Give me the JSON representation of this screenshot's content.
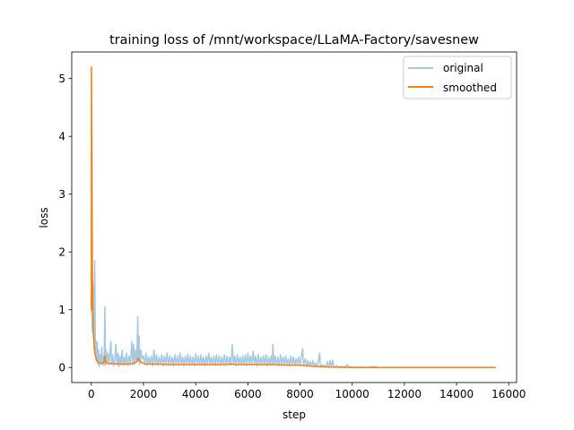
{
  "chart_data": {
    "type": "line",
    "title": "training loss of /mnt/workspace/LLaMA-Factory/savesnew",
    "xlabel": "step",
    "ylabel": "loss",
    "xlim": [
      -750,
      16300
    ],
    "ylim": [
      -0.26,
      5.46
    ],
    "xticks": [
      0,
      2000,
      4000,
      6000,
      8000,
      10000,
      12000,
      14000,
      16000
    ],
    "yticks": [
      0,
      1,
      2,
      3,
      4,
      5
    ],
    "grid": false,
    "legend_position": "upper right",
    "series": [
      {
        "name": "original",
        "color": "#1f77b4",
        "opacity": 0.4,
        "points": [
          [
            0,
            1.0
          ],
          [
            10,
            0.95
          ],
          [
            20,
            1.1
          ],
          [
            30,
            0.7
          ],
          [
            50,
            0.6
          ],
          [
            60,
            1.5
          ],
          [
            80,
            0.5
          ],
          [
            100,
            1.4
          ],
          [
            110,
            0.3
          ],
          [
            130,
            1.85
          ],
          [
            150,
            0.6
          ],
          [
            170,
            0.2
          ],
          [
            190,
            0.45
          ],
          [
            210,
            0.1
          ],
          [
            230,
            0.44
          ],
          [
            250,
            0.05
          ],
          [
            280,
            0.3
          ],
          [
            310,
            0.02
          ],
          [
            340,
            0.22
          ],
          [
            370,
            0.08
          ],
          [
            400,
            0.35
          ],
          [
            430,
            0.05
          ],
          [
            460,
            0.2
          ],
          [
            490,
            0.03
          ],
          [
            520,
            1.05
          ],
          [
            545,
            0.05
          ],
          [
            570,
            0.3
          ],
          [
            600,
            0.08
          ],
          [
            640,
            0.25
          ],
          [
            680,
            0.05
          ],
          [
            720,
            0.28
          ],
          [
            750,
            0.45
          ],
          [
            780,
            0.05
          ],
          [
            820,
            0.22
          ],
          [
            860,
            0.03
          ],
          [
            900,
            0.15
          ],
          [
            940,
            0.4
          ],
          [
            980,
            0.05
          ],
          [
            1020,
            0.25
          ],
          [
            1060,
            0.02
          ],
          [
            1100,
            0.2
          ],
          [
            1140,
            0.05
          ],
          [
            1180,
            0.3
          ],
          [
            1220,
            0.04
          ],
          [
            1260,
            0.18
          ],
          [
            1300,
            0.05
          ],
          [
            1350,
            0.25
          ],
          [
            1400,
            0.03
          ],
          [
            1450,
            0.2
          ],
          [
            1500,
            0.05
          ],
          [
            1550,
            0.45
          ],
          [
            1590,
            0.05
          ],
          [
            1620,
            0.4
          ],
          [
            1660,
            0.05
          ],
          [
            1700,
            0.3
          ],
          [
            1740,
            0.1
          ],
          [
            1780,
            0.88
          ],
          [
            1800,
            0.1
          ],
          [
            1830,
            0.55
          ],
          [
            1860,
            0.05
          ],
          [
            1900,
            0.3
          ],
          [
            1950,
            0.15
          ],
          [
            2000,
            0.2
          ],
          [
            2050,
            0.05
          ],
          [
            2100,
            0.25
          ],
          [
            2150,
            0.04
          ],
          [
            2200,
            0.18
          ],
          [
            2250,
            0.05
          ],
          [
            2300,
            0.2
          ],
          [
            2350,
            0.03
          ],
          [
            2400,
            0.3
          ],
          [
            2450,
            0.05
          ],
          [
            2500,
            0.22
          ],
          [
            2550,
            0.04
          ],
          [
            2600,
            0.18
          ],
          [
            2650,
            0.06
          ],
          [
            2700,
            0.22
          ],
          [
            2750,
            0.03
          ],
          [
            2800,
            0.2
          ],
          [
            2850,
            0.05
          ],
          [
            2900,
            0.25
          ],
          [
            2950,
            0.04
          ],
          [
            3000,
            0.2
          ],
          [
            3050,
            0.05
          ],
          [
            3100,
            0.18
          ],
          [
            3150,
            0.03
          ],
          [
            3200,
            0.22
          ],
          [
            3250,
            0.05
          ],
          [
            3300,
            0.2
          ],
          [
            3350,
            0.04
          ],
          [
            3400,
            0.25
          ],
          [
            3450,
            0.05
          ],
          [
            3500,
            0.18
          ],
          [
            3550,
            0.03
          ],
          [
            3600,
            0.2
          ],
          [
            3650,
            0.05
          ],
          [
            3700,
            0.23
          ],
          [
            3750,
            0.04
          ],
          [
            3800,
            0.2
          ],
          [
            3850,
            0.05
          ],
          [
            3900,
            0.18
          ],
          [
            3950,
            0.03
          ],
          [
            4000,
            0.24
          ],
          [
            4050,
            0.05
          ],
          [
            4100,
            0.2
          ],
          [
            4150,
            0.04
          ],
          [
            4200,
            0.22
          ],
          [
            4250,
            0.05
          ],
          [
            4300,
            0.18
          ],
          [
            4350,
            0.03
          ],
          [
            4400,
            0.2
          ],
          [
            4450,
            0.05
          ],
          [
            4500,
            0.25
          ],
          [
            4550,
            0.04
          ],
          [
            4600,
            0.18
          ],
          [
            4650,
            0.05
          ],
          [
            4700,
            0.2
          ],
          [
            4750,
            0.03
          ],
          [
            4800,
            0.22
          ],
          [
            4850,
            0.05
          ],
          [
            4900,
            0.2
          ],
          [
            4950,
            0.04
          ],
          [
            5000,
            0.18
          ],
          [
            5050,
            0.05
          ],
          [
            5100,
            0.22
          ],
          [
            5150,
            0.03
          ],
          [
            5200,
            0.2
          ],
          [
            5250,
            0.05
          ],
          [
            5300,
            0.18
          ],
          [
            5350,
            0.04
          ],
          [
            5400,
            0.4
          ],
          [
            5450,
            0.05
          ],
          [
            5500,
            0.2
          ],
          [
            5550,
            0.03
          ],
          [
            5600,
            0.22
          ],
          [
            5650,
            0.05
          ],
          [
            5700,
            0.18
          ],
          [
            5750,
            0.04
          ],
          [
            5800,
            0.2
          ],
          [
            5850,
            0.05
          ],
          [
            5900,
            0.22
          ],
          [
            5950,
            0.03
          ],
          [
            6000,
            0.25
          ],
          [
            6050,
            0.05
          ],
          [
            6100,
            0.2
          ],
          [
            6150,
            0.04
          ],
          [
            6200,
            0.28
          ],
          [
            6250,
            0.05
          ],
          [
            6300,
            0.2
          ],
          [
            6350,
            0.03
          ],
          [
            6400,
            0.22
          ],
          [
            6450,
            0.05
          ],
          [
            6500,
            0.18
          ],
          [
            6550,
            0.04
          ],
          [
            6600,
            0.2
          ],
          [
            6650,
            0.05
          ],
          [
            6700,
            0.22
          ],
          [
            6750,
            0.03
          ],
          [
            6800,
            0.18
          ],
          [
            6850,
            0.05
          ],
          [
            6900,
            0.2
          ],
          [
            6930,
            0.05
          ],
          [
            6960,
            0.4
          ],
          [
            7000,
            0.04
          ],
          [
            7050,
            0.2
          ],
          [
            7100,
            0.05
          ],
          [
            7150,
            0.18
          ],
          [
            7200,
            0.03
          ],
          [
            7250,
            0.22
          ],
          [
            7300,
            0.05
          ],
          [
            7350,
            0.18
          ],
          [
            7400,
            0.04
          ],
          [
            7450,
            0.2
          ],
          [
            7500,
            0.05
          ],
          [
            7550,
            0.15
          ],
          [
            7600,
            0.03
          ],
          [
            7650,
            0.2
          ],
          [
            7700,
            0.05
          ],
          [
            7750,
            0.18
          ],
          [
            7800,
            0.04
          ],
          [
            7850,
            0.15
          ],
          [
            7900,
            0.05
          ],
          [
            7950,
            0.18
          ],
          [
            8000,
            0.03
          ],
          [
            8050,
            0.2
          ],
          [
            8100,
            0.33
          ],
          [
            8130,
            0.03
          ],
          [
            8200,
            0.15
          ],
          [
            8250,
            0.02
          ],
          [
            8300,
            0.12
          ],
          [
            8350,
            0.02
          ],
          [
            8400,
            0.1
          ],
          [
            8450,
            0.02
          ],
          [
            8500,
            0.12
          ],
          [
            8550,
            0.01
          ],
          [
            8600,
            0.08
          ],
          [
            8650,
            0.02
          ],
          [
            8700,
            0.1
          ],
          [
            8750,
            0.25
          ],
          [
            8780,
            0.01
          ],
          [
            8850,
            0.05
          ],
          [
            8900,
            0.01
          ],
          [
            8950,
            0.04
          ],
          [
            9000,
            0.01
          ],
          [
            9050,
            0.1
          ],
          [
            9100,
            0.0
          ],
          [
            9150,
            0.12
          ],
          [
            9200,
            0.01
          ],
          [
            9250,
            0.13
          ],
          [
            9300,
            0.0
          ],
          [
            9400,
            0.03
          ],
          [
            9500,
            0.0
          ],
          [
            9600,
            0.02
          ],
          [
            9700,
            0.0
          ],
          [
            9800,
            0.05
          ],
          [
            9900,
            0.0
          ],
          [
            10000,
            0.01
          ],
          [
            10200,
            0.0
          ],
          [
            10400,
            0.01
          ],
          [
            10600,
            0.0
          ],
          [
            10800,
            0.02
          ],
          [
            11000,
            0.0
          ],
          [
            11500,
            0.0
          ],
          [
            12000,
            0.0
          ],
          [
            12500,
            0.0
          ],
          [
            13000,
            0.0
          ],
          [
            13500,
            0.0
          ],
          [
            14000,
            0.0
          ],
          [
            14500,
            0.0
          ],
          [
            15000,
            0.0
          ],
          [
            15500,
            0.0
          ]
        ]
      },
      {
        "name": "smoothed",
        "color": "#ff7f0e",
        "opacity": 1,
        "points": [
          [
            0,
            1.0
          ],
          [
            5,
            5.2
          ],
          [
            20,
            4.0
          ],
          [
            30,
            2.7
          ],
          [
            40,
            1.8
          ],
          [
            50,
            1.2
          ],
          [
            60,
            0.9
          ],
          [
            80,
            0.6
          ],
          [
            100,
            0.45
          ],
          [
            120,
            0.3
          ],
          [
            140,
            0.25
          ],
          [
            160,
            0.2
          ],
          [
            180,
            0.15
          ],
          [
            200,
            0.12
          ],
          [
            250,
            0.1
          ],
          [
            300,
            0.08
          ],
          [
            400,
            0.07
          ],
          [
            500,
            0.1
          ],
          [
            520,
            0.2
          ],
          [
            550,
            0.1
          ],
          [
            600,
            0.07
          ],
          [
            800,
            0.07
          ],
          [
            1000,
            0.06
          ],
          [
            1200,
            0.06
          ],
          [
            1400,
            0.06
          ],
          [
            1600,
            0.07
          ],
          [
            1750,
            0.1
          ],
          [
            1780,
            0.16
          ],
          [
            1850,
            0.12
          ],
          [
            1950,
            0.08
          ],
          [
            2100,
            0.06
          ],
          [
            2500,
            0.06
          ],
          [
            3000,
            0.05
          ],
          [
            3500,
            0.05
          ],
          [
            4000,
            0.05
          ],
          [
            4500,
            0.05
          ],
          [
            5000,
            0.05
          ],
          [
            5400,
            0.06
          ],
          [
            5500,
            0.05
          ],
          [
            6000,
            0.05
          ],
          [
            6500,
            0.05
          ],
          [
            7000,
            0.05
          ],
          [
            7500,
            0.04
          ],
          [
            8000,
            0.04
          ],
          [
            8500,
            0.02
          ],
          [
            9000,
            0.01
          ],
          [
            9500,
            0.005
          ],
          [
            10000,
            0.002
          ],
          [
            11000,
            0.0
          ],
          [
            12000,
            0.0
          ],
          [
            13000,
            0.0
          ],
          [
            14000,
            0.0
          ],
          [
            15500,
            0.0
          ]
        ]
      }
    ]
  }
}
